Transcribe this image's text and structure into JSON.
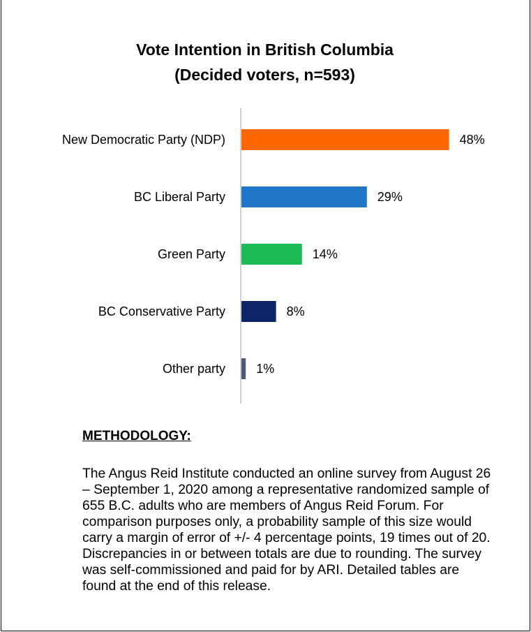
{
  "chart_data": {
    "type": "bar",
    "orientation": "horizontal",
    "title": "Vote Intention in British Columbia",
    "subtitle": "(Decided voters, n=593)",
    "categories": [
      "New Democratic Party (NDP)",
      "BC Liberal Party",
      "Green Party",
      "BC Conservative Party",
      "Other party"
    ],
    "values": [
      48,
      29,
      14,
      8,
      1
    ],
    "value_labels": [
      "48%",
      "29%",
      "14%",
      "8%",
      "1%"
    ],
    "colors": [
      "#ff6600",
      "#1f77c9",
      "#1fba58",
      "#0d2466",
      "#4a5a78"
    ],
    "xlim": [
      0,
      100
    ],
    "grid": false,
    "legend": "none"
  },
  "methodology": {
    "heading": "METHODOLOGY:",
    "body": "The Angus Reid Institute conducted an online survey from August 26 – September 1, 2020 among a representative randomized sample of 655 B.C. adults who are members of Angus Reid Forum. For comparison purposes only, a probability sample of this size would carry a margin of error of +/- 4 percentage points, 19 times out of 20. Discrepancies in or between totals are due to rounding. The survey was self-commissioned and paid for by ARI. Detailed tables are found at the end of this release."
  }
}
